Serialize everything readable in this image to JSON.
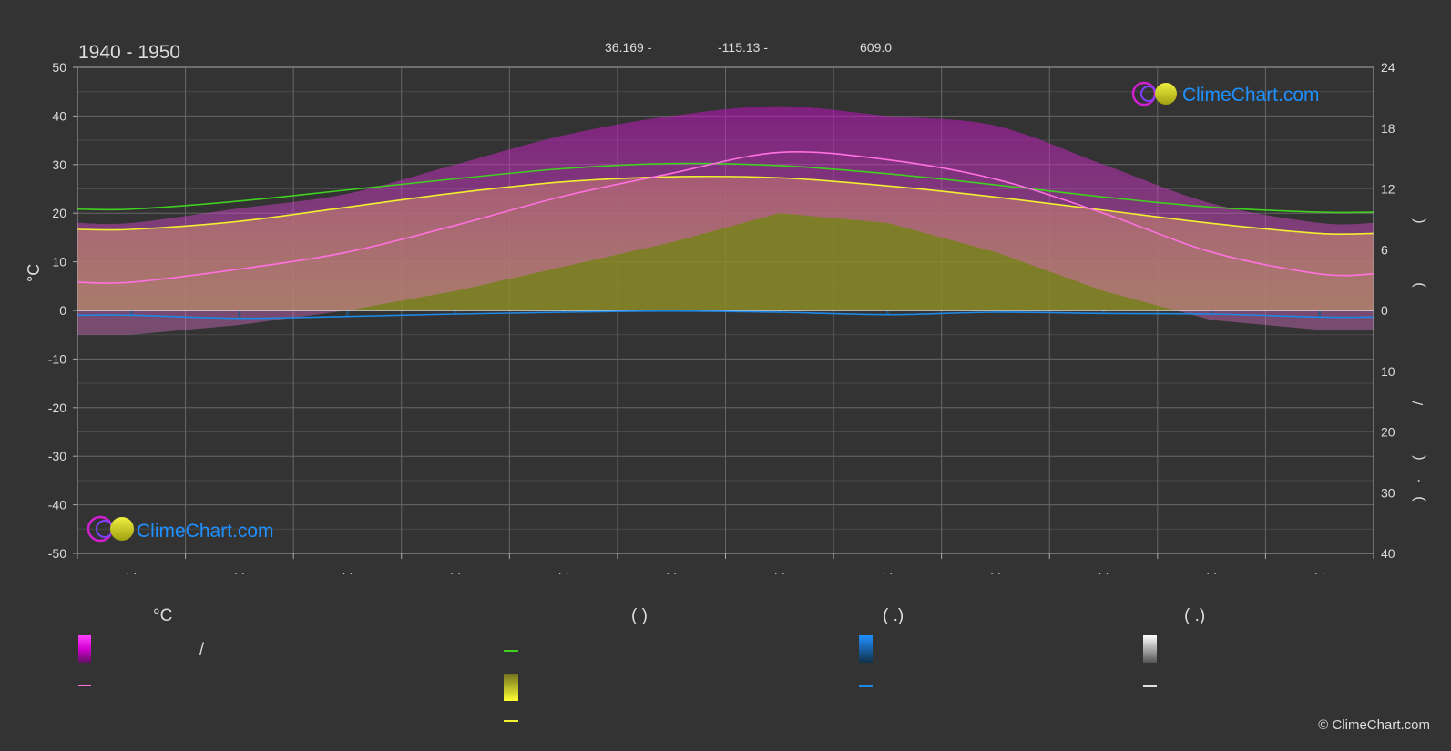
{
  "header": {
    "period": "1940 - 1950",
    "latitude": "36.169 -",
    "longitude": "-115.13 -",
    "elevation": "609.0"
  },
  "axes": {
    "left_title": "°C",
    "right_glyphs": [
      "(",
      ")",
      "/",
      "(",
      "·",
      ")"
    ],
    "month_label": "· ·"
  },
  "legend": {
    "col1_head": "°C",
    "col2_head": "(          )",
    "col3_head": "(    .)",
    "col4_head": "(    .)",
    "slash": "/"
  },
  "colors": {
    "background": "#333333",
    "grid": "#555555",
    "magenta": "#d020d0",
    "pink": "#ff70e0",
    "green": "#40d020",
    "yellow": "#f0f030",
    "olive": "#8c8c28",
    "blue": "#1e88e5",
    "white": "#e0e0e0",
    "brand_blue": "#1e90ff"
  },
  "logo": {
    "text": "ClimeChart.com"
  },
  "copyright": "© ClimeChart.com",
  "chart_data": {
    "type": "line",
    "title": "",
    "xlabel": "",
    "ylabel": "°C",
    "ylim": [
      -50,
      50
    ],
    "y_ticks": [
      50,
      40,
      30,
      20,
      10,
      0,
      -10,
      -20,
      -30,
      -40,
      -50
    ],
    "y2_ticks_top": [
      24,
      18,
      12,
      6,
      0
    ],
    "y2_ticks_bottom": [
      0,
      10,
      20,
      30,
      40
    ],
    "y2_sun_range": [
      0,
      24
    ],
    "y2_precip_range": [
      0,
      40
    ],
    "months": 12,
    "grid": true,
    "series": [
      {
        "key": "daylight",
        "color": "#40d020",
        "values": [
          10.0,
          10.8,
          11.9,
          13.0,
          14.0,
          14.5,
          14.3,
          13.5,
          12.4,
          11.2,
          10.2,
          9.7
        ]
      },
      {
        "key": "sunshine",
        "color": "#f0f030",
        "values": [
          8.0,
          8.8,
          10.2,
          11.6,
          12.7,
          13.2,
          13.1,
          12.3,
          11.2,
          9.9,
          8.6,
          7.6
        ]
      },
      {
        "key": "mean_temp",
        "color": "#ff70e0",
        "values": [
          5.8,
          8.5,
          12.0,
          17.5,
          23.5,
          28.2,
          32.5,
          31.0,
          27.0,
          20.0,
          12.0,
          7.5
        ]
      },
      {
        "key": "precip",
        "color": "#1e88e5",
        "values": [
          0.8,
          1.3,
          1.0,
          0.6,
          0.3,
          0.1,
          0.3,
          0.7,
          0.3,
          0.5,
          0.6,
          1.1
        ]
      }
    ],
    "temp_band": {
      "color": "#d020d0",
      "max": [
        18,
        21,
        24,
        30,
        36,
        40,
        42,
        40,
        38,
        30,
        22,
        18
      ],
      "min": [
        -5,
        -3,
        0,
        4,
        9,
        14,
        20,
        18,
        12,
        4,
        -2,
        -4
      ]
    }
  }
}
